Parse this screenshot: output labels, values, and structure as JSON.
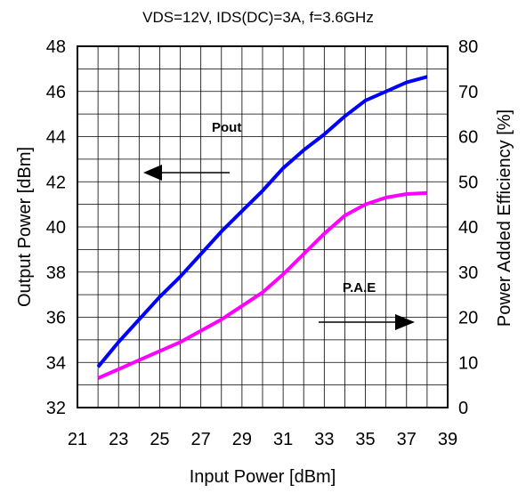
{
  "chart_data": {
    "type": "line",
    "title": "VDS=12V, IDS(DC)=3A, f=3.6GHz",
    "xlabel": "Input Power [dBm]",
    "ylabel_left": "Output Power [dBm]",
    "ylabel_right": "Power Added Efficiency [%]",
    "xlim": [
      21,
      39
    ],
    "ylim_left": [
      32,
      48
    ],
    "ylim_right": [
      0,
      80
    ],
    "x_ticks": [
      "21",
      "23",
      "25",
      "27",
      "29",
      "31",
      "33",
      "35",
      "37",
      "39"
    ],
    "y_left_ticks": [
      "32",
      "34",
      "36",
      "38",
      "40",
      "42",
      "44",
      "46",
      "48"
    ],
    "y_right_ticks": [
      "0",
      "10",
      "20",
      "30",
      "40",
      "50",
      "60",
      "70",
      "80"
    ],
    "grid": true,
    "series": [
      {
        "name": "Pout",
        "axis": "left",
        "color": "#0000ff",
        "x": [
          22,
          23,
          24,
          25,
          26,
          27,
          28,
          29,
          30,
          31,
          32,
          33,
          34,
          35,
          36,
          37,
          38
        ],
        "y": [
          33.8,
          34.9,
          35.9,
          36.9,
          37.8,
          38.8,
          39.8,
          40.7,
          41.6,
          42.6,
          43.4,
          44.1,
          44.9,
          45.6,
          46.0,
          46.4,
          46.65
        ]
      },
      {
        "name": "P.A.E",
        "axis": "right",
        "color": "#ff00ff",
        "x": [
          22,
          23,
          24,
          25,
          26,
          27,
          28,
          29,
          30,
          31,
          32,
          33,
          34,
          35,
          36,
          37,
          38
        ],
        "y": [
          6.5,
          8.5,
          10.5,
          12.5,
          14.5,
          17.0,
          19.5,
          22.5,
          25.5,
          29.5,
          34.0,
          38.5,
          42.5,
          45.0,
          46.5,
          47.3,
          47.5
        ]
      }
    ],
    "annotations": [
      {
        "text": "Pout",
        "arrow": "left"
      },
      {
        "text": "P.A.E",
        "arrow": "right"
      }
    ]
  }
}
